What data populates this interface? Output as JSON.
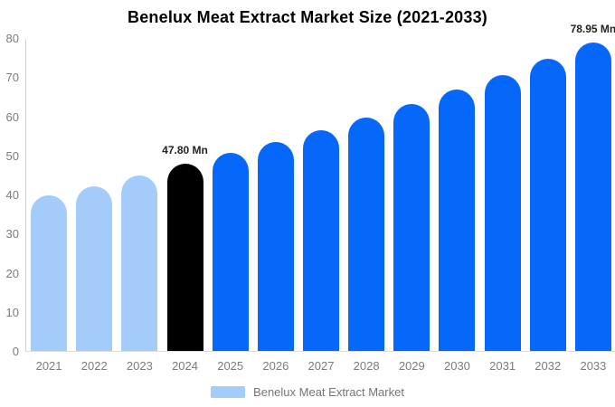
{
  "chart_data": {
    "type": "bar",
    "title": "Benelux Meat Extract Market Size (2021-2033)",
    "xlabel": "",
    "ylabel": "",
    "unit": "Mn",
    "categories": [
      "2021",
      "2022",
      "2023",
      "2024",
      "2025",
      "2026",
      "2027",
      "2028",
      "2029",
      "2030",
      "2031",
      "2032",
      "2033"
    ],
    "series": [
      {
        "name": "Benelux Meat Extract Market",
        "values": [
          39.8,
          42.2,
          44.8,
          47.8,
          50.54,
          53.44,
          56.5,
          59.74,
          63.16,
          66.78,
          70.61,
          74.66,
          78.95
        ]
      }
    ],
    "point_labels": [
      "",
      "",
      "",
      "47.80 Mn",
      "",
      "",
      "",
      "",
      "",
      "",
      "",
      "",
      "78.95 Mn"
    ],
    "bar_colors": [
      "#A3CCFA",
      "#A3CCFA",
      "#A3CCFA",
      "#000000",
      "#0568FB",
      "#0568FB",
      "#0568FB",
      "#0568FB",
      "#0568FB",
      "#0568FB",
      "#0568FB",
      "#0568FB",
      "#0568FB"
    ],
    "ylim": [
      0,
      80
    ],
    "yticks": [
      0,
      10,
      20,
      30,
      40,
      50,
      60,
      70,
      80
    ],
    "grid": false,
    "legend": {
      "position": "bottom",
      "label": "Benelux Meat Extract Market",
      "swatch_color": "#A3CCFA"
    },
    "colors": {
      "historical_bar": "#A3CCFA",
      "highlight_bar": "#000000",
      "forecast_bar": "#0568FB",
      "axis_text": "#7B7B7B",
      "value_label_text": "#222222",
      "axis_line": "#CFCFCF",
      "title_text": "#000000",
      "background": "#FFFFFF"
    }
  }
}
